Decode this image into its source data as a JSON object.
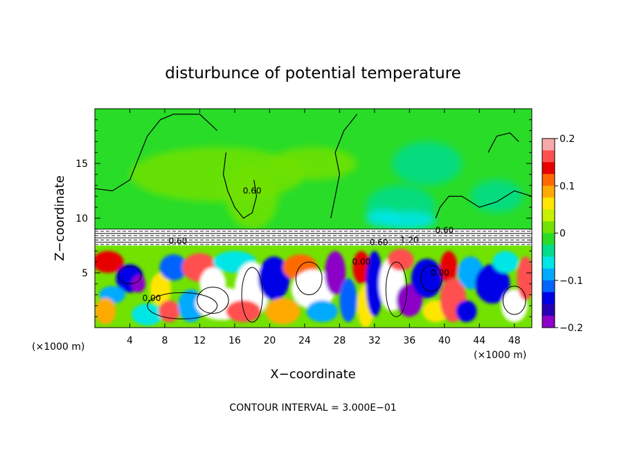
{
  "chart_data": {
    "type": "heatmap",
    "title": "disturbunce of potential temperature",
    "xlabel": "X−coordinate",
    "ylabel": "Z−coordinate",
    "x_unit_left": "(×1000 m)",
    "x_unit_right": "(×1000 m)",
    "footer": "CONTOUR INTERVAL = 3.000E−01",
    "xlim": [
      0,
      50
    ],
    "ylim": [
      0,
      20
    ],
    "x_ticks": [
      4,
      8,
      12,
      16,
      20,
      24,
      28,
      32,
      36,
      40,
      44,
      48
    ],
    "x_tick_labels": [
      "4",
      "8",
      "12",
      "16",
      "20",
      "24",
      "28",
      "32",
      "36",
      "40",
      "44",
      "48"
    ],
    "y_ticks": [
      5,
      10,
      15
    ],
    "y_tick_labels": [
      "5",
      "10",
      "15"
    ],
    "colorbar": {
      "range": [
        -0.2,
        0.2
      ],
      "ticks": [
        0.2,
        0.1,
        0,
        -0.1,
        -0.2
      ],
      "tick_labels": [
        "0.2",
        "0.1",
        "0",
        "−0.1",
        "−0.2"
      ],
      "colors": [
        "#f8a8a8",
        "#ff5050",
        "#e60000",
        "#ff6a00",
        "#ffaa00",
        "#ffe600",
        "#c8f000",
        "#72e200",
        "#28dc28",
        "#00dc8c",
        "#00e6e6",
        "#00aaff",
        "#0064ff",
        "#0000e6",
        "#2800b4",
        "#8c00c8"
      ]
    },
    "contour_labels": [
      {
        "text": "0.60",
        "x": 18.0,
        "z": 12.5
      },
      {
        "text": "0.60",
        "x": 40.0,
        "z": 8.9
      },
      {
        "text": "0.60",
        "x": 9.5,
        "z": 7.9
      },
      {
        "text": "0.60",
        "x": 32.5,
        "z": 7.8
      },
      {
        "text": "1.20",
        "x": 36.0,
        "z": 8.0
      },
      {
        "text": "0.00",
        "x": 6.5,
        "z": 2.7
      },
      {
        "text": "0.00",
        "x": 30.5,
        "z": 6.0
      },
      {
        "text": "0.00",
        "x": 39.5,
        "z": 5.0
      }
    ],
    "fields": {
      "upper_layer": "weak near-zero disturbance (≈0 to −0.05) above z≈9",
      "inversion": "strong gradient band at z≈7.5–9 (values beyond colorbar range)",
      "lower_layer": "turbulent eddies, values from −0.2 to >0.2 below z≈7.5"
    }
  }
}
